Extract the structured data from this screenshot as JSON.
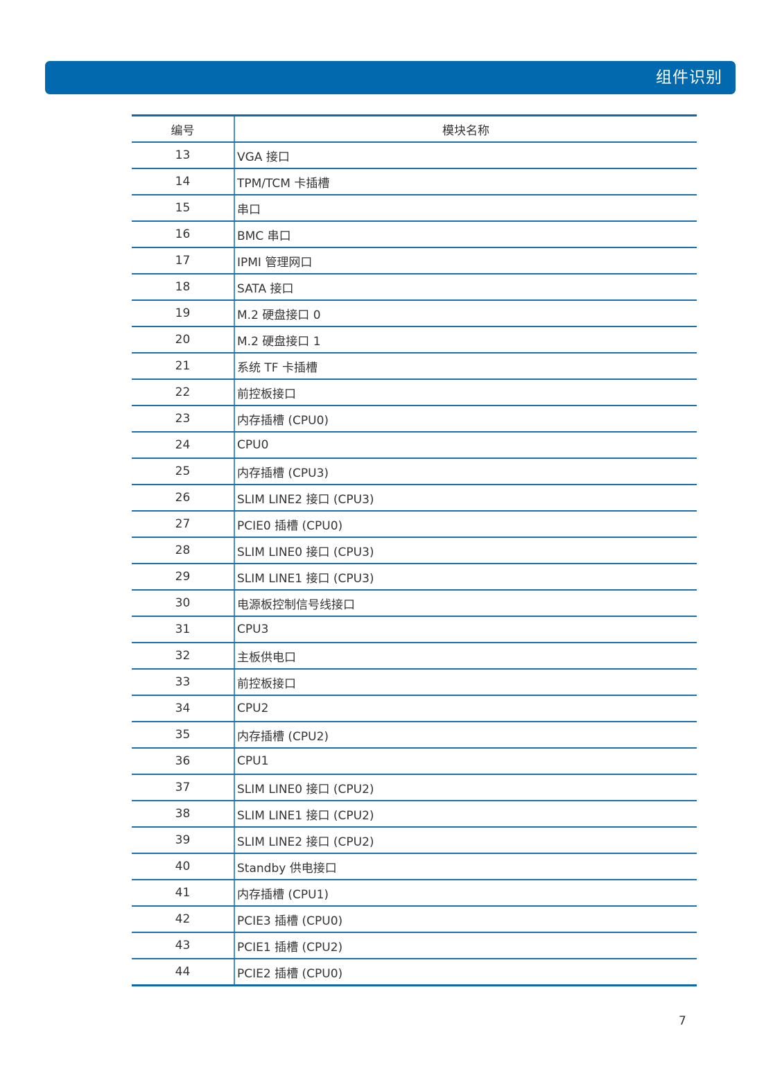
{
  "header": {
    "title": "组件识别",
    "color": "#0369ae"
  },
  "table": {
    "columns": [
      "编号",
      "模块名称"
    ],
    "rows": [
      {
        "num": "13",
        "name": "VGA 接口"
      },
      {
        "num": "14",
        "name": "TPM/TCM 卡插槽"
      },
      {
        "num": "15",
        "name": "串口"
      },
      {
        "num": "16",
        "name": "BMC 串口"
      },
      {
        "num": "17",
        "name": "IPMI 管理网口"
      },
      {
        "num": "18",
        "name": "SATA 接口"
      },
      {
        "num": "19",
        "name": "M.2 硬盘接口 0"
      },
      {
        "num": "20",
        "name": "M.2 硬盘接口 1"
      },
      {
        "num": "21",
        "name": "系统 TF 卡插槽"
      },
      {
        "num": "22",
        "name": "前控板接口"
      },
      {
        "num": "23",
        "name": "内存插槽 (CPU0)"
      },
      {
        "num": "24",
        "name": "CPU0"
      },
      {
        "num": "25",
        "name": "内存插槽 (CPU3)"
      },
      {
        "num": "26",
        "name": "SLIM LINE2 接口 (CPU3)"
      },
      {
        "num": "27",
        "name": "PCIE0 插槽 (CPU0)"
      },
      {
        "num": "28",
        "name": "SLIM LINE0 接口 (CPU3)"
      },
      {
        "num": "29",
        "name": "SLIM LINE1 接口 (CPU3)"
      },
      {
        "num": "30",
        "name": "电源板控制信号线接口"
      },
      {
        "num": "31",
        "name": "CPU3"
      },
      {
        "num": "32",
        "name": "主板供电口"
      },
      {
        "num": "33",
        "name": "前控板接口"
      },
      {
        "num": "34",
        "name": "CPU2"
      },
      {
        "num": "35",
        "name": "内存插槽 (CPU2)"
      },
      {
        "num": "36",
        "name": "CPU1"
      },
      {
        "num": "37",
        "name": "SLIM LINE0 接口 (CPU2)"
      },
      {
        "num": "38",
        "name": "SLIM LINE1 接口 (CPU2)"
      },
      {
        "num": "39",
        "name": "SLIM LINE2 接口 (CPU2)"
      },
      {
        "num": "40",
        "name": "Standby 供电接口"
      },
      {
        "num": "41",
        "name": "内存插槽 (CPU1)"
      },
      {
        "num": "42",
        "name": "PCIE3 插槽 (CPU0)"
      },
      {
        "num": "43",
        "name": "PCIE1 插槽 (CPU2)"
      },
      {
        "num": "44",
        "name": "PCIE2 插槽 (CPU0)"
      }
    ]
  },
  "footer": {
    "page_number": "7"
  }
}
